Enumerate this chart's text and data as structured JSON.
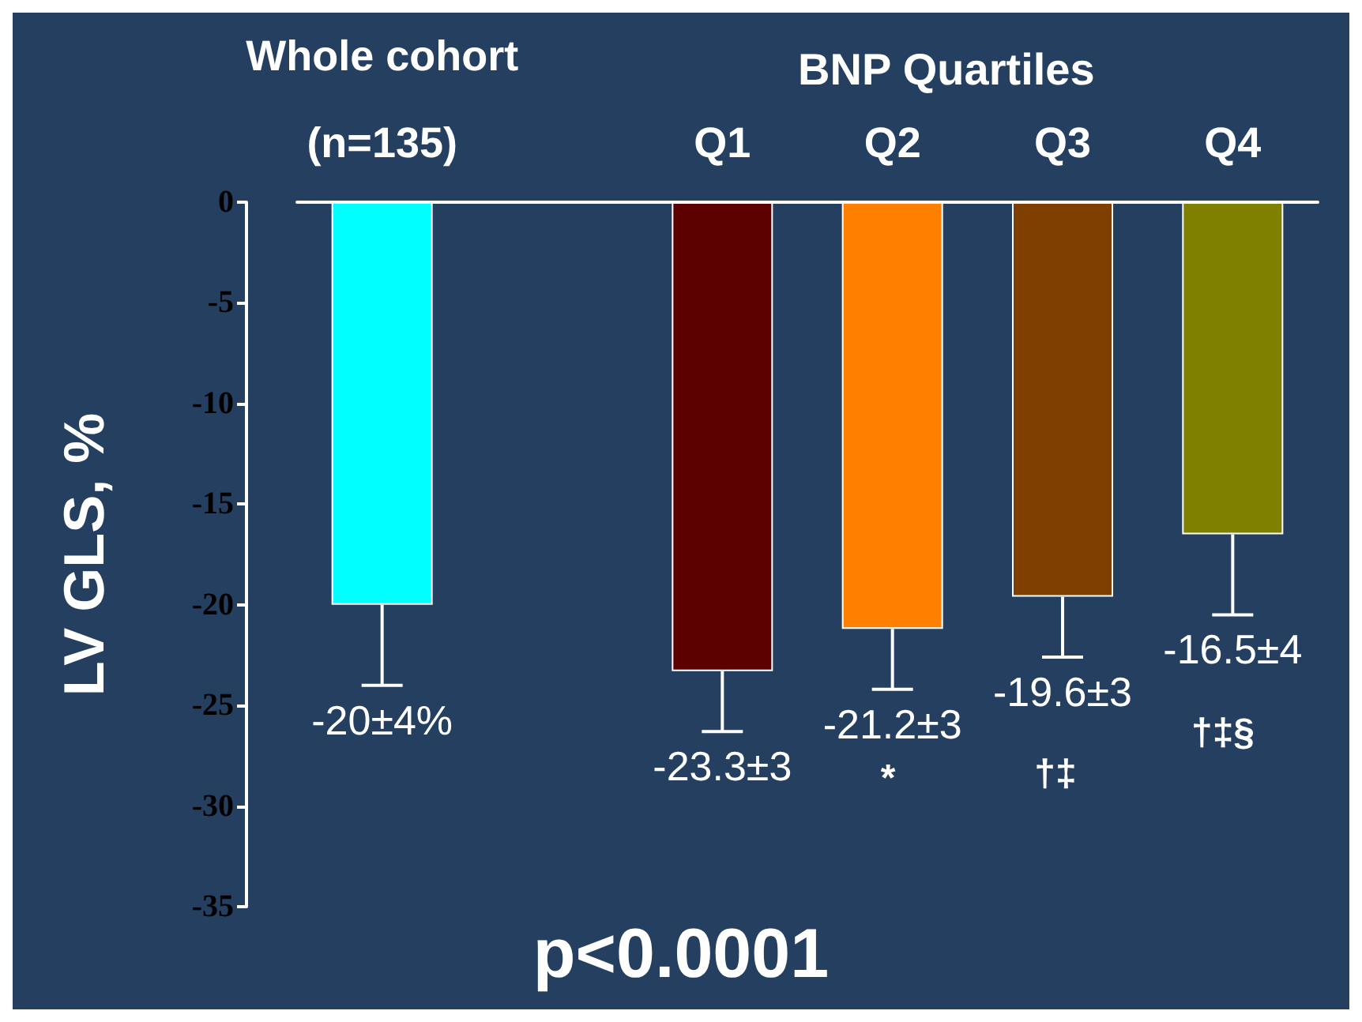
{
  "chart_data": {
    "type": "bar",
    "ylabel": "LV GLS, %",
    "categories": [
      "Whole cohort\n(n=135)",
      null,
      "Q1",
      "Q2",
      "Q3",
      "Q4"
    ],
    "values": [
      -20,
      null,
      -23.3,
      -21.2,
      -19.6,
      -16.5
    ],
    "colors": [
      "#00ffff",
      "#000000",
      "#5c0000",
      "#ff8000",
      "#7f3f00",
      "#808000"
    ],
    "errors": [
      [
        -24,
        -20
      ],
      null,
      [
        -26.3,
        -23.3
      ],
      [
        -24.2,
        -21.2
      ],
      [
        -22.6,
        -19.6
      ],
      [
        -20.5,
        -16.5
      ]
    ],
    "value_labels": [
      "-20±4%",
      null,
      "-23.3±3",
      "-21.2±3",
      "-19.6±3",
      "-16.5±4"
    ],
    "ylim": [
      -35,
      0
    ],
    "yticks": [
      0,
      -5,
      -10,
      -15,
      -20,
      -25,
      -30,
      -35
    ],
    "annotations": [
      "BNP Quartiles",
      "p<0.0001",
      "*",
      "†‡",
      "†‡§"
    ]
  }
}
